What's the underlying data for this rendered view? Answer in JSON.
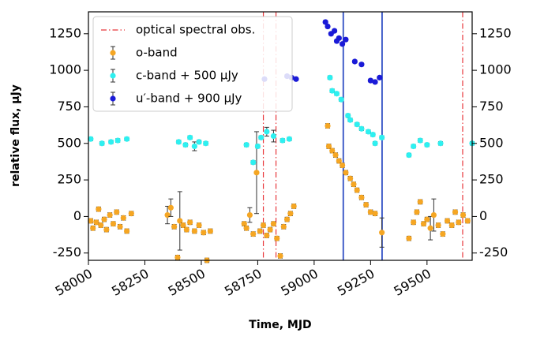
{
  "chart_data": {
    "type": "scatter",
    "xlabel": "Time, MJD",
    "ylabel": "relative flux, μJy",
    "xlim": [
      58000,
      59700
    ],
    "xticks": [
      58000,
      58250,
      58500,
      58750,
      59000,
      59250,
      59500
    ],
    "ylim": [
      -300,
      1400
    ],
    "yticks": [
      -250,
      0,
      250,
      500,
      750,
      1000,
      1250
    ],
    "y2lim": [
      -300,
      1400
    ],
    "y2ticks": [
      -250,
      0,
      250,
      500,
      750,
      1000,
      1250
    ],
    "legend": "upper left",
    "vlines": [
      {
        "name": "optical spectral obs.",
        "color": "#e8363a",
        "style": "dashdot",
        "x": [
          58775,
          58831,
          59658
        ]
      },
      {
        "color": "#2f4fc4",
        "style": "solid",
        "x": [
          59129,
          59301
        ]
      }
    ],
    "series": [
      {
        "name": "o-band",
        "color": "#f5a623",
        "x": [
          58010,
          58020,
          58035,
          58045,
          58055,
          58070,
          58080,
          58095,
          58110,
          58125,
          58140,
          58155,
          58170,
          58190,
          58350,
          58365,
          58380,
          58395,
          58405,
          58420,
          58435,
          58450,
          58470,
          58490,
          58510,
          58525,
          58540,
          58690,
          58700,
          58715,
          58730,
          58745,
          58760,
          58775,
          58790,
          58805,
          58820,
          58835,
          58850,
          58865,
          58880,
          58895,
          58910,
          59060,
          59065,
          59080,
          59095,
          59110,
          59125,
          59140,
          59160,
          59175,
          59190,
          59210,
          59230,
          59250,
          59270,
          59300,
          59420,
          59440,
          59455,
          59470,
          59485,
          59500,
          59515,
          59530,
          59550,
          59570,
          59590,
          59610,
          59625,
          59640,
          59660,
          59680
        ],
        "values": [
          -30,
          -80,
          -40,
          50,
          -60,
          -20,
          -90,
          10,
          -50,
          30,
          -70,
          -10,
          -100,
          20,
          10,
          60,
          -70,
          -280,
          -30,
          -60,
          -90,
          -40,
          -100,
          -60,
          -110,
          -300,
          -100,
          -50,
          -80,
          10,
          -120,
          300,
          -100,
          -60,
          -130,
          -90,
          -50,
          -150,
          -270,
          -70,
          -20,
          20,
          70,
          620,
          480,
          450,
          420,
          380,
          350,
          300,
          260,
          220,
          180,
          130,
          80,
          30,
          20,
          -110,
          -150,
          -40,
          30,
          100,
          -50,
          -20,
          -80,
          10,
          -60,
          -120,
          -30,
          -60,
          30,
          -40,
          10,
          -30
        ],
        "errors": [
          15,
          15,
          15,
          15,
          15,
          15,
          15,
          15,
          15,
          15,
          15,
          15,
          15,
          15,
          60,
          60,
          15,
          15,
          200,
          15,
          15,
          15,
          15,
          15,
          15,
          15,
          15,
          15,
          15,
          50,
          15,
          280,
          15,
          15,
          15,
          15,
          15,
          15,
          15,
          15,
          15,
          15,
          15,
          15,
          15,
          15,
          15,
          15,
          15,
          15,
          15,
          15,
          15,
          15,
          15,
          15,
          15,
          100,
          15,
          15,
          15,
          15,
          15,
          15,
          80,
          110,
          15,
          15,
          15,
          15,
          15,
          15,
          15,
          15
        ]
      },
      {
        "name": "c-band + 500 μJy",
        "color": "#2ef0f0",
        "x": [
          58010,
          58060,
          58100,
          58130,
          58170,
          58400,
          58430,
          58450,
          58470,
          58490,
          58520,
          58700,
          58730,
          58750,
          58765,
          58790,
          58820,
          58860,
          58890,
          59070,
          59080,
          59100,
          59120,
          59150,
          59160,
          59190,
          59210,
          59240,
          59260,
          59270,
          59300,
          59420,
          59440,
          59470,
          59500,
          59560,
          59700
        ],
        "values": [
          530,
          500,
          510,
          520,
          530,
          510,
          490,
          540,
          480,
          510,
          500,
          490,
          370,
          480,
          540,
          580,
          550,
          520,
          530,
          950,
          860,
          840,
          800,
          690,
          660,
          630,
          600,
          580,
          560,
          500,
          540,
          420,
          480,
          520,
          490,
          500,
          500
        ],
        "errors": [
          12,
          12,
          12,
          12,
          12,
          12,
          12,
          12,
          30,
          12,
          12,
          12,
          12,
          12,
          12,
          30,
          40,
          12,
          12,
          12,
          12,
          12,
          12,
          12,
          12,
          12,
          12,
          12,
          12,
          12,
          12,
          12,
          12,
          12,
          12,
          12,
          12
        ]
      },
      {
        "name": "u′-band + 900 μJy",
        "color": "#1a1ad8",
        "x": [
          58780,
          58880,
          58900,
          58920,
          59050,
          59060,
          59075,
          59090,
          59100,
          59110,
          59125,
          59140,
          59180,
          59210,
          59250,
          59270,
          59290
        ],
        "values": [
          940,
          960,
          950,
          940,
          1330,
          1300,
          1250,
          1270,
          1200,
          1220,
          1180,
          1210,
          1060,
          1040,
          930,
          920,
          950
        ],
        "errors": [
          10,
          10,
          10,
          10,
          10,
          10,
          10,
          10,
          10,
          10,
          10,
          10,
          10,
          10,
          10,
          10,
          10
        ]
      }
    ]
  }
}
